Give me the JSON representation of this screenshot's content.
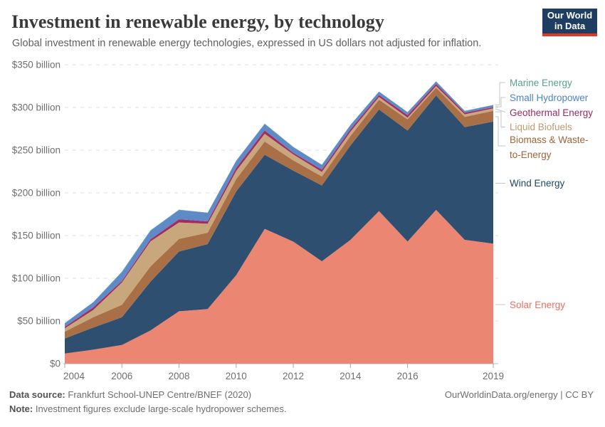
{
  "header": {
    "title": "Investment in renewable energy, by technology",
    "subtitle": "Global investment in renewable energy technologies, expressed in US dollars not adjusted for inflation.",
    "logo": {
      "line1": "Our World",
      "line2": "in Data",
      "bg_color": "#1d3d63",
      "stripe_color": "#dc3927"
    }
  },
  "chart_data": {
    "type": "area",
    "stacked": true,
    "title": "Investment in renewable energy, by technology",
    "xlabel": "",
    "ylabel": "US$ billion",
    "ylim": [
      0,
      350
    ],
    "grid": "horizontal-dashed",
    "legend_position": "right",
    "x": [
      2004,
      2005,
      2006,
      2007,
      2008,
      2009,
      2010,
      2011,
      2012,
      2013,
      2014,
      2015,
      2016,
      2017,
      2018,
      2019
    ],
    "x_ticks": [
      2004,
      2006,
      2008,
      2010,
      2012,
      2014,
      2016,
      2019
    ],
    "y_ticks": [
      {
        "v": 0,
        "label": "$0"
      },
      {
        "v": 50,
        "label": "$50 billion"
      },
      {
        "v": 100,
        "label": "$100 billion"
      },
      {
        "v": 150,
        "label": "$150 billion"
      },
      {
        "v": 200,
        "label": "$200 billion"
      },
      {
        "v": 250,
        "label": "$250 billion"
      },
      {
        "v": 300,
        "label": "$300 billion"
      },
      {
        "v": 350,
        "label": "$350 billion"
      }
    ],
    "series": [
      {
        "key": "solar",
        "name": "Solar Energy",
        "color": "#ea8672",
        "label_color": "#e8705f",
        "values": [
          11.9,
          16.4,
          21.9,
          38.8,
          61.3,
          64.0,
          103.6,
          157.8,
          142.9,
          119.9,
          144.9,
          178.7,
          143.0,
          180.1,
          145.0,
          140.5
        ]
      },
      {
        "key": "wind",
        "name": "Wind Energy",
        "color": "#2e4f70",
        "label_color": "#1d4866",
        "values": [
          17.6,
          25.9,
          32.4,
          57.1,
          70.0,
          76.0,
          98.0,
          86.8,
          83.1,
          88.8,
          110.5,
          118.9,
          130.0,
          134.0,
          132.0,
          143.0
        ]
      },
      {
        "key": "biomass",
        "name": "Biomass & Waste-to-Energy",
        "color": "#a96f47",
        "label_color": "#9d6437",
        "values": [
          8.0,
          12.0,
          14.6,
          17.9,
          14.8,
          13.3,
          14.5,
          15.5,
          12.0,
          10.5,
          11.1,
          11.5,
          13.0,
          9.0,
          12.0,
          12.5
        ]
      },
      {
        "key": "liquid_biofuels",
        "name": "Liquid Biofuels",
        "color": "#c8a77d",
        "label_color": "#bd9a72",
        "values": [
          3.8,
          8.6,
          26.1,
          29.4,
          19.2,
          10.5,
          9.4,
          9.1,
          7.0,
          5.3,
          5.1,
          3.2,
          2.2,
          2.0,
          3.0,
          3.0
        ]
      },
      {
        "key": "geothermal",
        "name": "Geothermal Energy",
        "color": "#a12d63",
        "label_color": "#9c2963",
        "values": [
          1.7,
          3.1,
          1.8,
          2.5,
          3.8,
          2.9,
          3.7,
          3.9,
          1.8,
          2.7,
          2.8,
          2.3,
          2.7,
          2.4,
          1.8,
          1.2
        ]
      },
      {
        "key": "small_hydropower",
        "name": "Small Hydropower",
        "color": "#5e8ac7",
        "label_color": "#4b84c4",
        "values": [
          4.4,
          6.0,
          10.1,
          9.8,
          11.0,
          9.8,
          8.2,
          7.5,
          6.7,
          5.6,
          5.0,
          3.9,
          3.5,
          3.0,
          2.0,
          2.5
        ]
      },
      {
        "key": "marine",
        "name": "Marine Energy",
        "color": "#5aa08c",
        "label_color": "#57a18c",
        "values": [
          0.1,
          0.1,
          0.9,
          0.7,
          0.2,
          0.3,
          0.3,
          0.5,
          0.3,
          0.1,
          0.2,
          0.2,
          0.2,
          0.2,
          0.2,
          0.3
        ]
      }
    ]
  },
  "footer": {
    "source_label": "Data source:",
    "source_text": "Frankfurt School-UNEP Centre/BNEF (2020)",
    "note_label": "Note:",
    "note_text": "Investment figures exclude large-scale hydropower schemes.",
    "link": "OurWorldinData.org/energy",
    "divider": "|",
    "license": "CC BY"
  }
}
